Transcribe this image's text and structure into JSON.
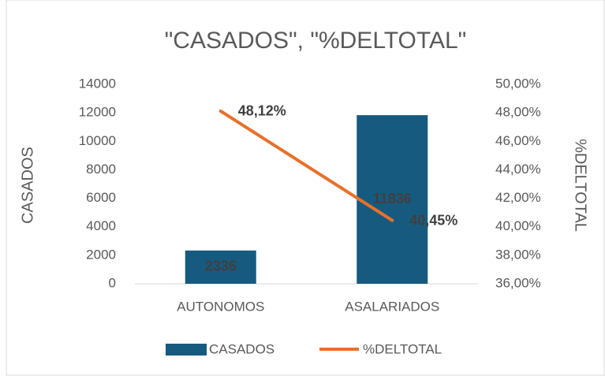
{
  "chart_data": {
    "type": "bar-line",
    "title": "\"CASADOS\", \"%DELTOTAL\"",
    "y_label": "CASADOS",
    "y2_label": "%DELTOTAL",
    "categories": [
      "AUTONOMOS",
      "ASALARIADOS"
    ],
    "series": [
      {
        "name": "CASADOS",
        "type": "bar",
        "color": "#175a7f",
        "values": [
          2336,
          11836
        ]
      },
      {
        "name": "%DELTOTAL",
        "type": "line",
        "axis": "y2",
        "color": "#e8702a",
        "values": [
          48.12,
          40.45
        ],
        "value_labels": [
          "48,12%",
          "40,45%"
        ]
      }
    ],
    "ylim": [
      0,
      14000
    ],
    "yticks": [
      0,
      2000,
      4000,
      6000,
      8000,
      10000,
      12000,
      14000
    ],
    "y2lim": [
      36,
      50
    ],
    "y2ticks": [
      {
        "value": 36,
        "label": "36,00%"
      },
      {
        "value": 38,
        "label": "38,00%"
      },
      {
        "value": 40,
        "label": "40,00%"
      },
      {
        "value": 42,
        "label": "42,00%"
      },
      {
        "value": 44,
        "label": "44,00%"
      },
      {
        "value": 46,
        "label": "46,00%"
      },
      {
        "value": 48,
        "label": "48,00%"
      },
      {
        "value": 50,
        "label": "50,00%"
      }
    ],
    "legend": "bottom",
    "grid": false
  }
}
